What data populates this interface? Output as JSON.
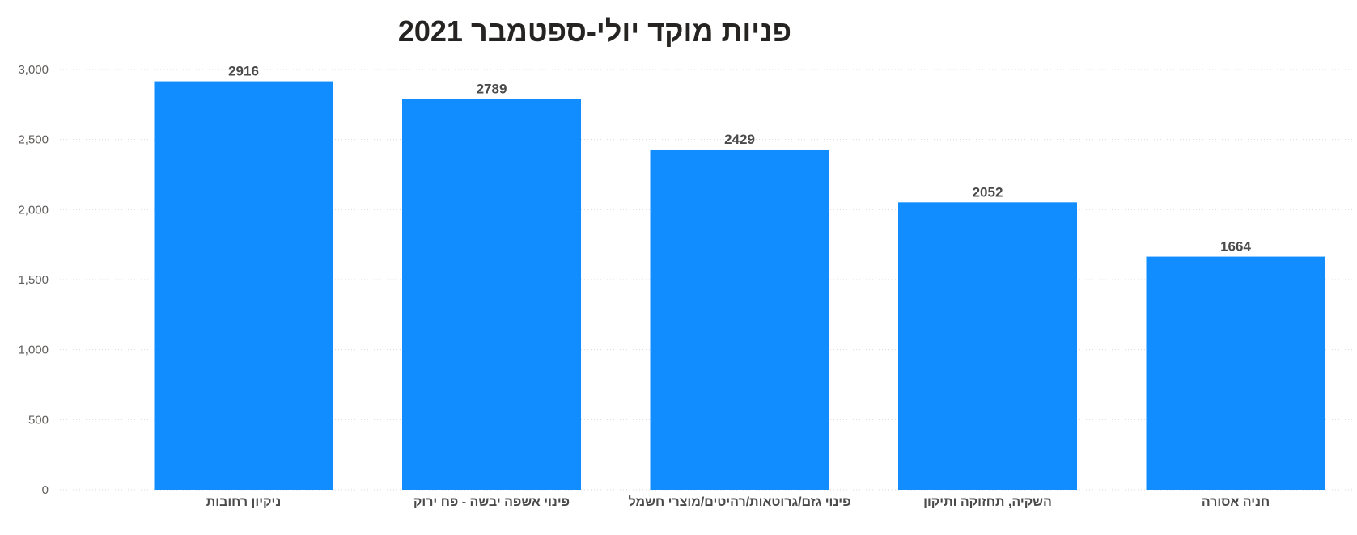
{
  "chart_data": {
    "type": "bar",
    "title": "פניות מוקד יולי-ספטמבר 2021",
    "categories": [
      "ניקיון רחובות",
      "פינוי אשפה יבשה - פח ירוק",
      "פינוי גזם/גרוטאות/רהיטים/מוצרי חשמל",
      "השקיה, תחזוקה ותיקון",
      "חניה אסורה"
    ],
    "values": [
      2916,
      2789,
      2429,
      2052,
      1664
    ],
    "data_labels": [
      "2916",
      "2789",
      "2429",
      "2052",
      "1664"
    ],
    "y_ticks": [
      {
        "value": 0,
        "label": "0"
      },
      {
        "value": 500,
        "label": "500"
      },
      {
        "value": 1000,
        "label": "1,000"
      },
      {
        "value": 1500,
        "label": "1,500"
      },
      {
        "value": 2000,
        "label": "2,000"
      },
      {
        "value": 2500,
        "label": "2,500"
      },
      {
        "value": 3000,
        "label": "3,000"
      }
    ],
    "ylim": [
      0,
      3000
    ],
    "grid": true,
    "bar_color": "#118DFF",
    "xlabel": "",
    "ylabel": ""
  }
}
